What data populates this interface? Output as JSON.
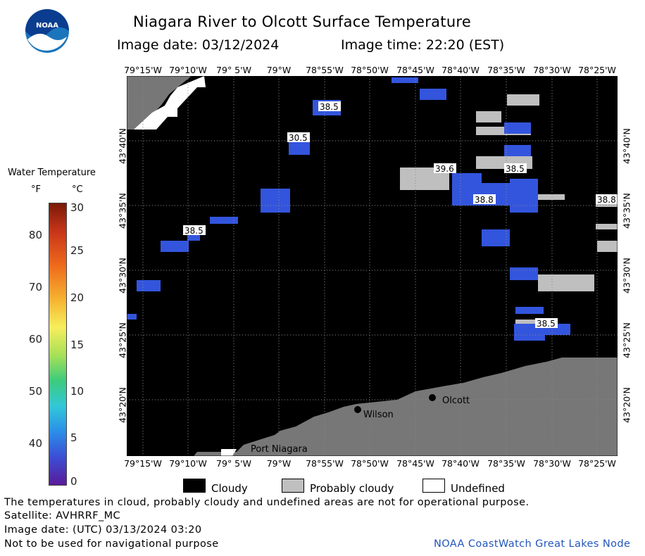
{
  "header": {
    "title": "Niagara River to Olcott Surface Temperature",
    "image_date": "Image date: 03/12/2024",
    "image_time": "Image time: 22:20 (EST)"
  },
  "logo": {
    "text": "NOAA"
  },
  "colorbar": {
    "title": "Water Temperature",
    "unit_f": "°F",
    "unit_c": "°C",
    "f_ticks": [
      "80",
      "70",
      "60",
      "50",
      "40"
    ],
    "c_ticks": [
      "30",
      "25",
      "20",
      "15",
      "10",
      "5",
      "0"
    ]
  },
  "axes": {
    "lon_labels": [
      "79°15'W",
      "79°10'W",
      "79° 5'W",
      "79°W",
      "78°55'W",
      "78°50'W",
      "78°45'W",
      "78°40'W",
      "78°35'W",
      "78°30'W",
      "78°25'W"
    ],
    "lat_labels": [
      "43°40'N",
      "43°35'N",
      "43°30'N",
      "43°25'N",
      "43°20'N"
    ]
  },
  "map": {
    "places": [
      "Olcott",
      "Wilson",
      "Port Niagara"
    ],
    "temp_labels": [
      "38.5",
      "30.5",
      "39.6",
      "38.5",
      "38.8",
      "38.8",
      "38.5",
      "38.5"
    ]
  },
  "legend": {
    "cloudy": "Cloudy",
    "probably_cloudy": "Probably cloudy",
    "undefined": "Undefined"
  },
  "footer": {
    "disclaimer": "The temperatures in cloud, probably cloudy and undefined areas are not for operational purpose.",
    "satellite": "Satellite: AVHRRF_MC",
    "utc_date": "Image date: (UTC) 03/13/2024  03:20",
    "nav_warning": "Not to be used for navigational purpose",
    "credit": "NOAA CoastWatch Great Lakes Node"
  },
  "colors": {
    "cloud": "#000000",
    "probably_cloudy": "#bfbfbf",
    "land": "#777777",
    "water_temp": "#3355dd",
    "credit": "#2255bb"
  }
}
